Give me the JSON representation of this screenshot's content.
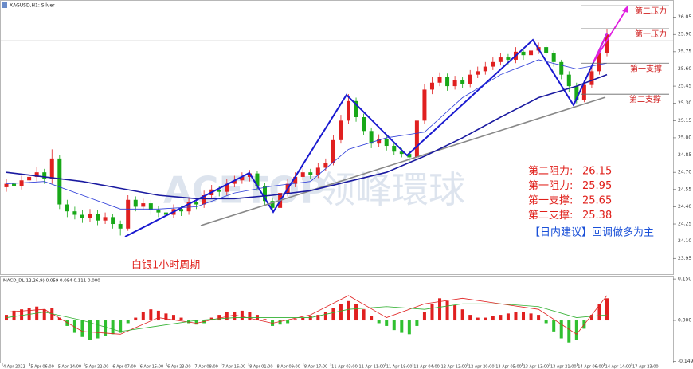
{
  "chart_data": {
    "type": "candlestick",
    "title": "XAGUSD,H1: Silver",
    "up_color": "#e02020",
    "down_color": "#18a818",
    "open": [
      24.57,
      24.6,
      24.58,
      24.63,
      24.66,
      24.7,
      24.64,
      24.82,
      24.42,
      24.36,
      24.33,
      24.3,
      24.34,
      24.28,
      24.31,
      24.25,
      24.21,
      24.46,
      24.4,
      24.43,
      24.37,
      24.35,
      24.33,
      24.38,
      24.36,
      24.44,
      24.42,
      24.5,
      24.55,
      24.53,
      24.6,
      24.63,
      24.66,
      24.69,
      24.58,
      24.45,
      24.39,
      24.52,
      24.6,
      24.66,
      24.7,
      24.68,
      24.74,
      24.78,
      24.98,
      25.15,
      25.32,
      25.18,
      25.06,
      24.95,
      24.99,
      24.93,
      24.88,
      24.86,
      24.83,
      25.15,
      25.42,
      25.48,
      25.53,
      25.45,
      25.5,
      25.47,
      25.55,
      25.58,
      25.62,
      25.66,
      25.7,
      25.68,
      25.75,
      25.72,
      25.76,
      25.79,
      25.74,
      25.66,
      25.55,
      25.45,
      25.33,
      25.46,
      25.58,
      25.74
    ],
    "high": [
      24.64,
      24.63,
      24.67,
      24.7,
      24.75,
      24.73,
      24.9,
      24.85,
      24.46,
      24.4,
      24.37,
      24.38,
      24.37,
      24.35,
      24.34,
      24.28,
      24.5,
      24.49,
      24.47,
      24.46,
      24.41,
      24.39,
      24.42,
      24.41,
      24.48,
      24.47,
      24.54,
      24.59,
      24.58,
      24.64,
      24.67,
      24.7,
      24.72,
      24.71,
      24.61,
      24.48,
      24.56,
      24.64,
      24.7,
      24.74,
      24.73,
      24.78,
      24.82,
      25.02,
      25.2,
      25.38,
      25.35,
      25.21,
      25.09,
      25.03,
      25.02,
      24.96,
      24.91,
      24.89,
      25.19,
      25.47,
      25.53,
      25.57,
      25.56,
      25.54,
      25.53,
      25.59,
      25.62,
      25.66,
      25.7,
      25.74,
      25.73,
      25.79,
      25.78,
      25.8,
      25.83,
      25.81,
      25.76,
      25.68,
      25.58,
      25.48,
      25.5,
      25.62,
      25.78,
      25.95
    ],
    "low": [
      24.53,
      24.55,
      24.55,
      24.6,
      24.62,
      24.6,
      24.6,
      24.38,
      24.31,
      24.29,
      24.26,
      24.27,
      24.24,
      24.25,
      24.21,
      24.15,
      24.19,
      24.36,
      24.37,
      24.33,
      24.31,
      24.29,
      24.3,
      24.32,
      24.33,
      24.38,
      24.39,
      24.47,
      24.49,
      24.5,
      24.57,
      24.6,
      24.62,
      24.54,
      24.41,
      24.36,
      24.37,
      24.49,
      24.57,
      24.63,
      24.64,
      24.65,
      24.71,
      24.76,
      24.95,
      25.12,
      25.14,
      25.02,
      24.91,
      24.92,
      24.89,
      24.85,
      24.83,
      24.79,
      24.81,
      25.12,
      25.38,
      25.45,
      25.41,
      25.42,
      25.43,
      25.44,
      25.52,
      25.55,
      25.59,
      25.63,
      25.64,
      25.65,
      25.68,
      25.69,
      25.73,
      25.7,
      25.62,
      25.51,
      25.4,
      25.3,
      25.31,
      25.43,
      25.55,
      25.71
    ],
    "close": [
      24.6,
      24.58,
      24.63,
      24.66,
      24.7,
      24.64,
      24.82,
      24.42,
      24.36,
      24.33,
      24.3,
      24.34,
      24.28,
      24.31,
      24.25,
      24.21,
      24.46,
      24.4,
      24.43,
      24.37,
      24.35,
      24.33,
      24.38,
      24.36,
      24.44,
      24.42,
      24.5,
      24.55,
      24.53,
      24.6,
      24.63,
      24.66,
      24.69,
      24.58,
      24.45,
      24.39,
      24.52,
      24.6,
      24.66,
      24.7,
      24.68,
      24.74,
      24.78,
      24.98,
      25.15,
      25.32,
      25.18,
      25.06,
      24.95,
      24.99,
      24.93,
      24.88,
      24.86,
      24.83,
      25.15,
      25.42,
      25.48,
      25.53,
      25.45,
      25.5,
      25.47,
      25.55,
      25.58,
      25.62,
      25.66,
      25.7,
      25.68,
      25.75,
      25.72,
      25.76,
      25.79,
      25.74,
      25.66,
      25.55,
      25.45,
      25.33,
      25.46,
      25.58,
      25.74,
      25.9
    ],
    "ylim": [
      23.82,
      26.2
    ],
    "yticks": [
      26.05,
      {
        "value": 25.9,
        "label": "25.90"
      },
      25.75,
      {
        "value": 25.6,
        "label": "25.60"
      },
      25.45,
      {
        "value": 25.3,
        "label": "25.30"
      },
      25.15,
      {
        "value": 25.0,
        "label": "25.00"
      },
      24.85,
      {
        "value": 24.7,
        "label": "24.70"
      },
      24.55,
      {
        "value": 24.4,
        "label": "24.40"
      },
      24.25,
      {
        "value": 24.1,
        "label": "24.10"
      },
      23.95
    ],
    "x_labels": [
      "4 Apr 2022",
      "5 Apr 06:00",
      "5 Apr 14:00",
      "5 Apr 22:00",
      "6 Apr 07:00",
      "6 Apr 15:00",
      "6 Apr 23:00",
      "7 Apr 08:00",
      "7 Apr 16:00",
      "8 Apr 01:00",
      "8 Apr 09:00",
      "8 Apr 17:00",
      "11 Apr 03:00",
      "11 Apr 11:00",
      "11 Apr 19:00",
      "12 Apr 04:00",
      "12 Apr 12:00",
      "12 Apr 20:00",
      "13 Apr 05:00",
      "13 Apr 13:00",
      "13 Apr 21:00",
      "14 Apr 06:00",
      "14 Apr 14:00",
      "17 Apr 23:00"
    ],
    "lines": [
      {
        "color": "#1a1aa0",
        "width": 1.6,
        "x": [
          0,
          5,
          10,
          15,
          20,
          25,
          30,
          35,
          40,
          45,
          50,
          55,
          60,
          65,
          70,
          75,
          79
        ],
        "values": [
          24.7,
          24.66,
          24.62,
          24.56,
          24.5,
          24.47,
          24.47,
          24.5,
          24.54,
          24.62,
          24.7,
          24.84,
          25.0,
          25.18,
          25.35,
          25.45,
          25.55
        ]
      },
      {
        "color": "#2a3ad8",
        "width": 0.8,
        "x": [
          0,
          5,
          10,
          15,
          20,
          25,
          30,
          35,
          40,
          45,
          50,
          55,
          60,
          65,
          70,
          75,
          79
        ],
        "values": [
          24.6,
          24.62,
          24.5,
          24.38,
          24.38,
          24.4,
          24.52,
          24.58,
          24.62,
          24.9,
          25.0,
          25.05,
          25.35,
          25.55,
          25.68,
          25.6,
          25.65
        ]
      }
    ],
    "levels": [
      {
        "tag": "第二压力",
        "label": "第二阻力:",
        "value": 26.15
      },
      {
        "tag": "第一压力",
        "label": "第一阻力:",
        "value": 25.95
      },
      {
        "tag": "第一支撑",
        "label": "第一支撑:",
        "value": 25.65
      },
      {
        "tag": "第二支撑",
        "label": "第二支撑:",
        "value": 25.38
      }
    ],
    "advice": "【日内建议】回调做多为主",
    "caption": "白银1小时周期",
    "watermark": [
      "ACETOP",
      "领峰環球"
    ],
    "macd": {
      "type": "bar",
      "title": "MACD_DL(12,26,9) 0.059 0.084 0.111 0.000",
      "values": [
        0.02,
        0.035,
        0.04,
        0.045,
        0.05,
        0.04,
        0.045,
        0.01,
        -0.02,
        -0.045,
        -0.06,
        -0.07,
        -0.065,
        -0.055,
        -0.05,
        -0.045,
        -0.01,
        0.01,
        0.03,
        0.04,
        0.035,
        0.025,
        0.02,
        0.01,
        -0.01,
        -0.015,
        -0.01,
        0.01,
        0.02,
        0.03,
        0.03,
        0.035,
        0.03,
        0.02,
        0.005,
        -0.02,
        -0.015,
        -0.01,
        0.005,
        0.01,
        0.015,
        0.02,
        0.03,
        0.045,
        0.06,
        0.07,
        0.06,
        0.04,
        0.015,
        -0.01,
        -0.02,
        -0.035,
        -0.045,
        -0.05,
        -0.02,
        0.03,
        0.06,
        0.08,
        0.07,
        0.055,
        0.04,
        0.02,
        0.01,
        0.01,
        0.015,
        0.02,
        0.025,
        0.03,
        0.03,
        0.025,
        0.02,
        -0.01,
        -0.04,
        -0.065,
        -0.08,
        -0.07,
        -0.03,
        0.02,
        0.06,
        0.08
      ],
      "pos_color": "#e02020",
      "neg_color": "#30c030",
      "ylim": [
        -0.156,
        0.159
      ],
      "yticks": [
        {
          "value": 0.15,
          "label": "0.150"
        },
        {
          "value": 0,
          "label": "0.000"
        },
        -0.149
      ],
      "lines": [
        {
          "color": "#e02020",
          "x": [
            0,
            5,
            10,
            15,
            20,
            25,
            30,
            35,
            40,
            45,
            50,
            55,
            60,
            65,
            70,
            75,
            79
          ],
          "values": [
            0.03,
            0.04,
            -0.04,
            -0.05,
            0.01,
            -0.01,
            0.02,
            -0.01,
            0.02,
            0.09,
            0.01,
            0.06,
            0.08,
            0.06,
            0.04,
            -0.05,
            0.09
          ]
        },
        {
          "color": "#30b030",
          "x": [
            0,
            5,
            10,
            15,
            20,
            25,
            30,
            35,
            40,
            45,
            50,
            55,
            60,
            65,
            70,
            75,
            79
          ],
          "values": [
            0.01,
            0.03,
            0.0,
            -0.04,
            -0.02,
            0.0,
            0.01,
            0.01,
            0.01,
            0.04,
            0.05,
            0.04,
            0.06,
            0.06,
            0.05,
            0.01,
            0.02
          ]
        }
      ]
    }
  }
}
